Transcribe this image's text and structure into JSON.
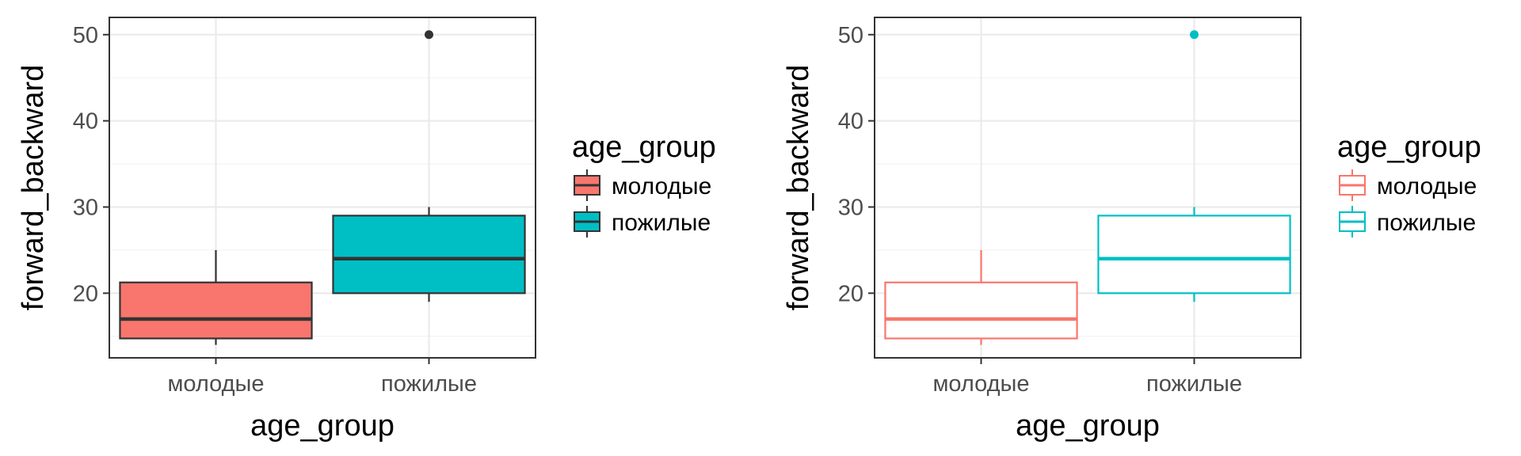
{
  "chart_data": [
    {
      "type": "box",
      "style": "filled",
      "xlabel": "age_group",
      "ylabel": "forward_backward",
      "ylim": [
        12.5,
        52
      ],
      "yticks": [
        20,
        30,
        40,
        50
      ],
      "categories": [
        "молодые",
        "пожилые"
      ],
      "boxes": [
        {
          "category": "молодые",
          "min": 14,
          "q1": 14.75,
          "median": 17,
          "q3": 21.25,
          "max": 25,
          "outliers": []
        },
        {
          "category": "пожилые",
          "min": 19,
          "q1": 20,
          "median": 24,
          "q3": 29,
          "max": 30,
          "outliers": [
            50
          ]
        }
      ],
      "legend": {
        "title": "age_group",
        "entries": [
          "молодые",
          "пожилые"
        ],
        "position": "right"
      },
      "colors": {
        "молодые": "#F8766D",
        "пожилые": "#00BFC4",
        "outline": "#333333"
      },
      "grid": true
    },
    {
      "type": "box",
      "style": "outline",
      "xlabel": "age_group",
      "ylabel": "forward_backward",
      "ylim": [
        12.5,
        52
      ],
      "yticks": [
        20,
        30,
        40,
        50
      ],
      "categories": [
        "молодые",
        "пожилые"
      ],
      "boxes": [
        {
          "category": "молодые",
          "min": 14,
          "q1": 14.75,
          "median": 17,
          "q3": 21.25,
          "max": 25,
          "outliers": []
        },
        {
          "category": "пожилые",
          "min": 19,
          "q1": 20,
          "median": 24,
          "q3": 29,
          "max": 30,
          "outliers": [
            50
          ]
        }
      ],
      "legend": {
        "title": "age_group",
        "entries": [
          "молодые",
          "пожилые"
        ],
        "position": "right"
      },
      "colors": {
        "молодые": "#F8766D",
        "пожилые": "#00BFC4"
      },
      "grid": true
    }
  ]
}
